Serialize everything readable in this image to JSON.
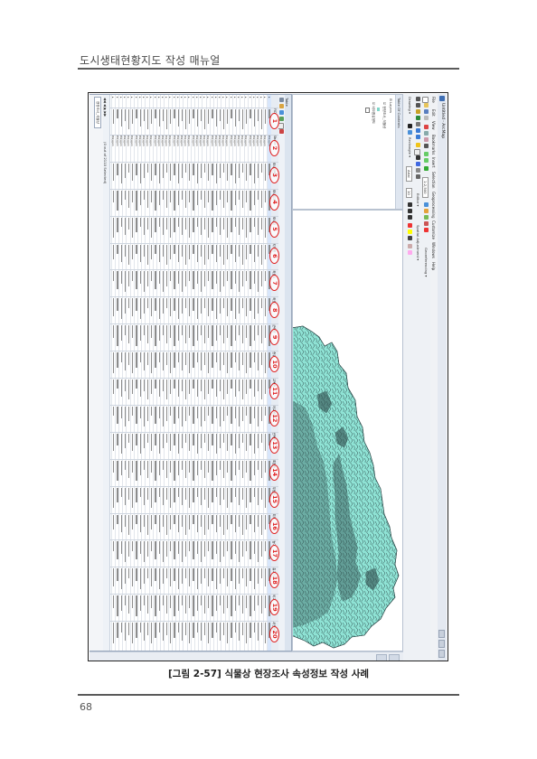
{
  "header": {
    "running_title": "도시생태현황지도 작성 매뉴얼"
  },
  "footer": {
    "page_number": "68"
  },
  "figure": {
    "caption": "[그림 2-57] 식물상 현장조사 속성정보 작성 사례",
    "window_title": "Untitled - ArcMap",
    "menu": [
      "File",
      "Edit",
      "View",
      "Bookmarks",
      "Insert",
      "Selection",
      "Geoprocessing",
      "Customize",
      "Windows",
      "Help"
    ],
    "toolbar_labels": {
      "georeferencing": "Georeferencing ▾",
      "editor": "Editor ▾",
      "drawing": "Drawing ▾",
      "rectangle": "Rectangle ▾",
      "arial": "Arial",
      "font_size": "10",
      "spatial_adjustment": "Spatial Adjustment ▾",
      "scale": "1:2,500"
    },
    "toc": {
      "title": "Table Of Contents",
      "layers_label": "Layers",
      "layers": [
        "현장조사_식물상",
        "비오톱유형도"
      ]
    },
    "table": {
      "title": "Table",
      "layer_name": "현장조사_식물상",
      "status_text": "(0 out of 2110 Selected)",
      "record_label": "0",
      "columns": [
        "FID",
        "Shape *",
        "조사지번호",
        "조사일자",
        "조사자",
        "지역명",
        "좌표X",
        "좌표Y",
        "군락명",
        "층위",
        "교목층",
        "아교목층",
        "관목층",
        "초본층",
        "우점종",
        "피도",
        "높이",
        "흉고직경",
        "비고",
        "사진번호"
      ],
      "shape_value": "Polygon",
      "row_count": 42,
      "marker_numbers": [
        "1",
        "2",
        "3",
        "4",
        "5",
        "6",
        "7",
        "8",
        "9",
        "10",
        "11",
        "12",
        "13",
        "14",
        "15",
        "16",
        "17",
        "18",
        "19",
        "20"
      ]
    },
    "colors": {
      "map_fill": "#8fe3d5",
      "map_stroke": "#2d4a4a",
      "marker": "#e02020",
      "selection": "#d8e6fb"
    }
  }
}
